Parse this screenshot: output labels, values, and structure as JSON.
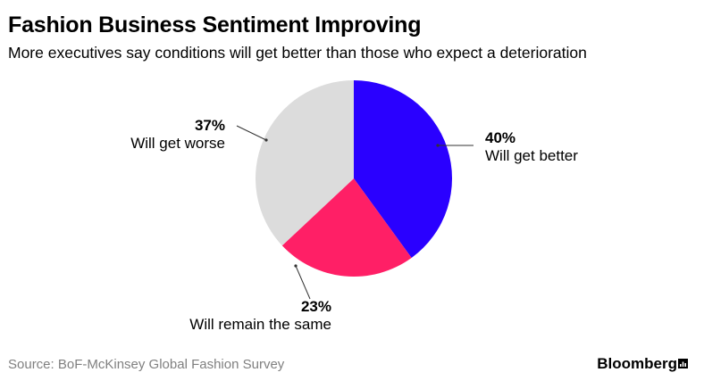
{
  "title": "Fashion Business Sentiment Improving",
  "subtitle": "More executives say conditions will get better than those who expect a deterioration",
  "source": "Source: BoF-McKinsey Global Fashion Survey",
  "brand": "Bloomberg",
  "chart_data": {
    "type": "pie",
    "slices": [
      {
        "label": "Will get better",
        "value": 40,
        "display": "40%",
        "color": "#2a00ff"
      },
      {
        "label": "Will remain the same",
        "value": 23,
        "display": "23%",
        "color": "#ff1f66"
      },
      {
        "label": "Will get worse",
        "value": 37,
        "display": "37%",
        "color": "#dcdcdc"
      }
    ],
    "start": "12 o'clock",
    "direction": "clockwise"
  }
}
